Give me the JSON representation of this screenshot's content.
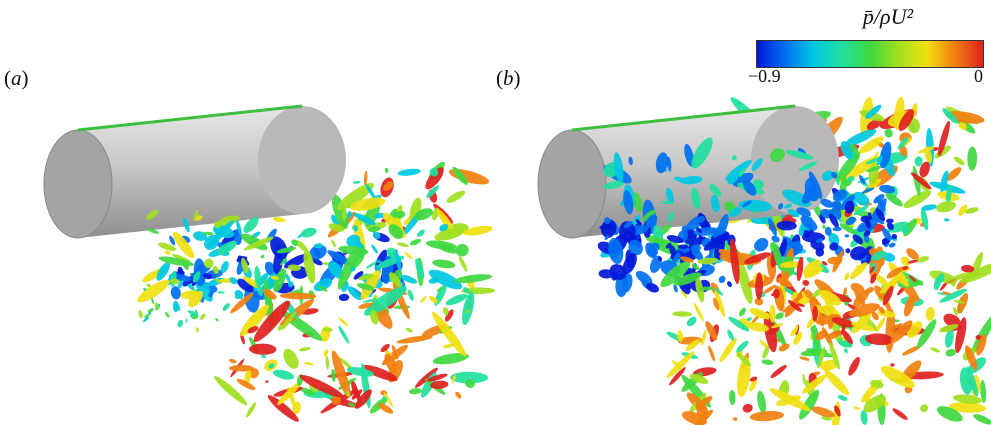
{
  "panels": [
    {
      "label_open": "(",
      "label_letter": "a",
      "label_close": ")"
    },
    {
      "label_open": "(",
      "label_letter": "b",
      "label_close": ")"
    }
  ],
  "colorbar": {
    "title": "p̄/ρU²",
    "min_label": "−0.9",
    "max_label": "0",
    "colormap": [
      "#0018d8",
      "#0070f0",
      "#00c8e0",
      "#20e0a0",
      "#40d840",
      "#a0e020",
      "#f0e010",
      "#f08010",
      "#e02020"
    ]
  },
  "colors": {
    "cylinder_light": "#d8d8d8",
    "cylinder_dark": "#8c8c8c",
    "background": "#ffffff"
  }
}
